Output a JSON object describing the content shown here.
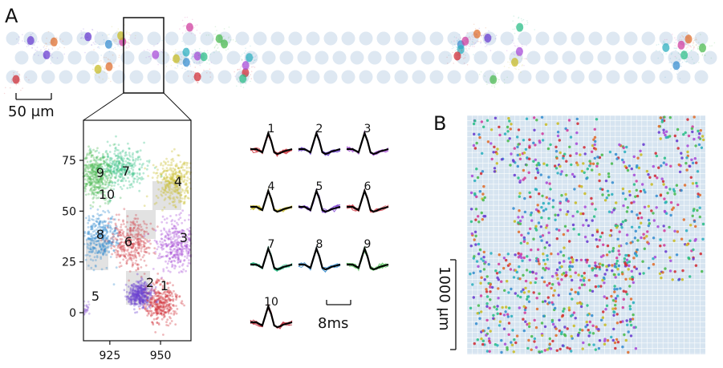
{
  "panel_a": {
    "label": "A",
    "scale_bar_label": "50 μm",
    "inset": {
      "y_ticks": [
        "75",
        "50",
        "25",
        "0"
      ],
      "x_ticks": [
        "925",
        "950"
      ],
      "clusters": [
        {
          "id": "1",
          "color": "#d0313a"
        },
        {
          "id": "2",
          "color": "#6a3fd0"
        },
        {
          "id": "3",
          "color": "#a84fd8"
        },
        {
          "id": "4",
          "color": "#c9bd2a"
        },
        {
          "id": "5",
          "color": "#9c6fd8"
        },
        {
          "id": "6",
          "color": "#d0414b"
        },
        {
          "id": "7",
          "color": "#3cc48a"
        },
        {
          "id": "8",
          "color": "#3a8fd0"
        },
        {
          "id": "9",
          "color": "#4dbb52"
        },
        {
          "id": "10",
          "color": "#48b85a"
        }
      ]
    },
    "waveforms": {
      "units": [
        {
          "label": "1",
          "color": "#d0313a"
        },
        {
          "label": "2",
          "color": "#6a3fd0"
        },
        {
          "label": "3",
          "color": "#a84fd8"
        },
        {
          "label": "4",
          "color": "#c9bd2a"
        },
        {
          "label": "5",
          "color": "#7a3fd0"
        },
        {
          "label": "6",
          "color": "#d0414b"
        },
        {
          "label": "7",
          "color": "#2fbf8a"
        },
        {
          "label": "8",
          "color": "#3a8fd0"
        },
        {
          "label": "9",
          "color": "#4dbb52"
        },
        {
          "label": "10",
          "color": "#c0303d"
        }
      ],
      "scale_bar_label": "8ms"
    }
  },
  "panel_b": {
    "label": "B",
    "scale_bar_label": "1000 μm"
  },
  "colors": {
    "electrode": "#c8d8ea",
    "probe_bg": "#d6e4f0",
    "grid_line": "#ffffff",
    "mean_waveform": "#000000"
  }
}
